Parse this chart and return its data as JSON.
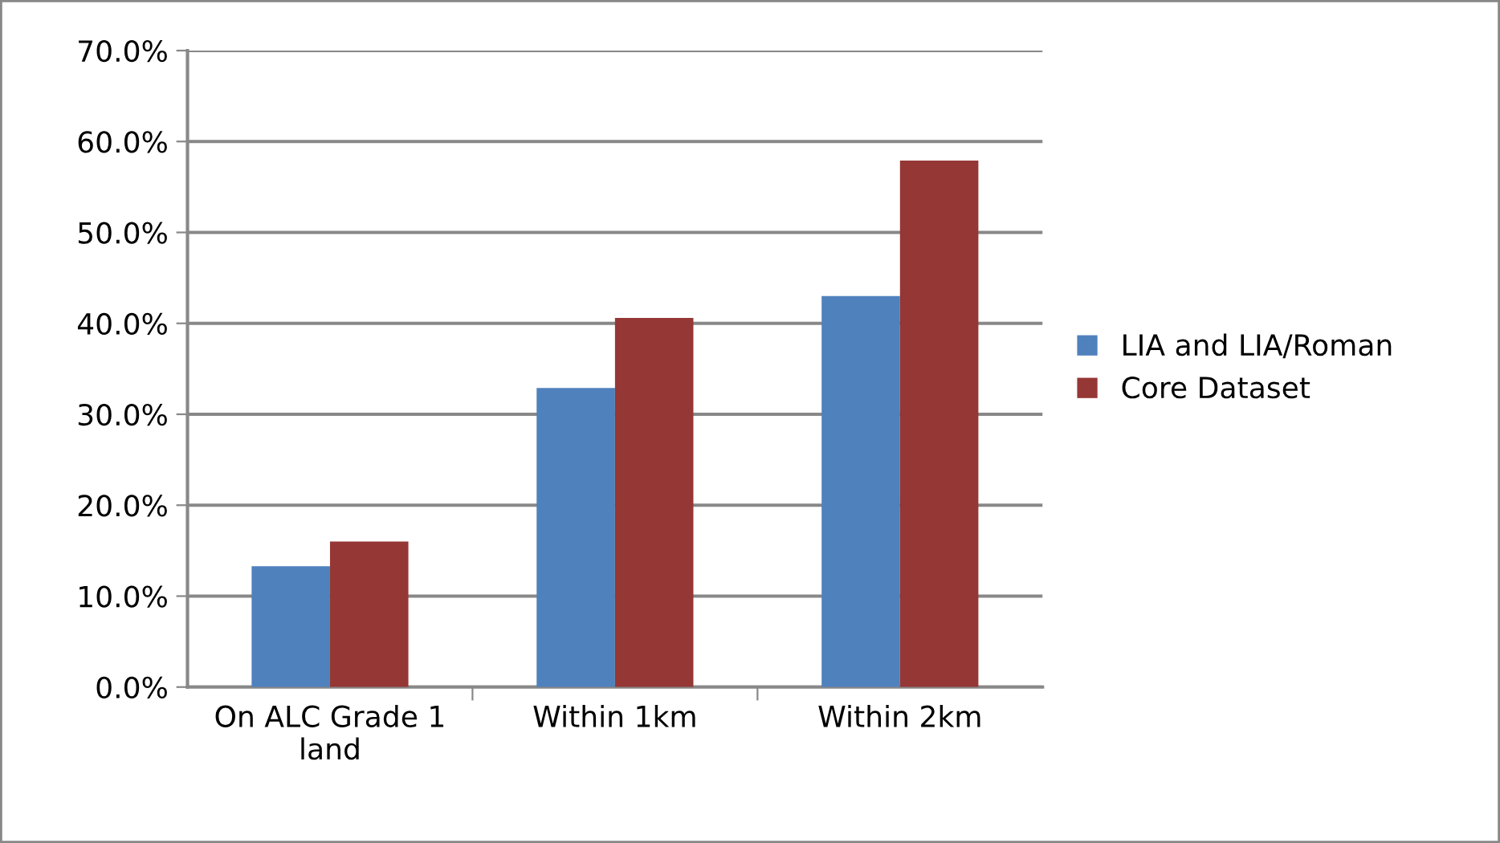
{
  "chart_data": {
    "type": "bar",
    "categories": [
      "On ALC Grade 1 land",
      "Within 1km",
      "Within 2km"
    ],
    "series": [
      {
        "name": "LIA and LIA/Roman",
        "color": "#4f81bd",
        "values": [
          13.3,
          32.9,
          43.0
        ]
      },
      {
        "name": "Core Dataset",
        "color": "#953735",
        "values": [
          16.0,
          40.6,
          57.9
        ]
      }
    ],
    "ylim": [
      0,
      70
    ],
    "yticks": [
      {
        "value": 0,
        "label": "0.0%"
      },
      {
        "value": 10,
        "label": "10.0%"
      },
      {
        "value": 20,
        "label": "20.0%"
      },
      {
        "value": 30,
        "label": "30.0%"
      },
      {
        "value": 40,
        "label": "40.0%"
      },
      {
        "value": 50,
        "label": "50.0%"
      },
      {
        "value": 60,
        "label": "60.0%"
      },
      {
        "value": 70,
        "label": "70.0%"
      }
    ],
    "grid": "y",
    "legend": "right"
  }
}
